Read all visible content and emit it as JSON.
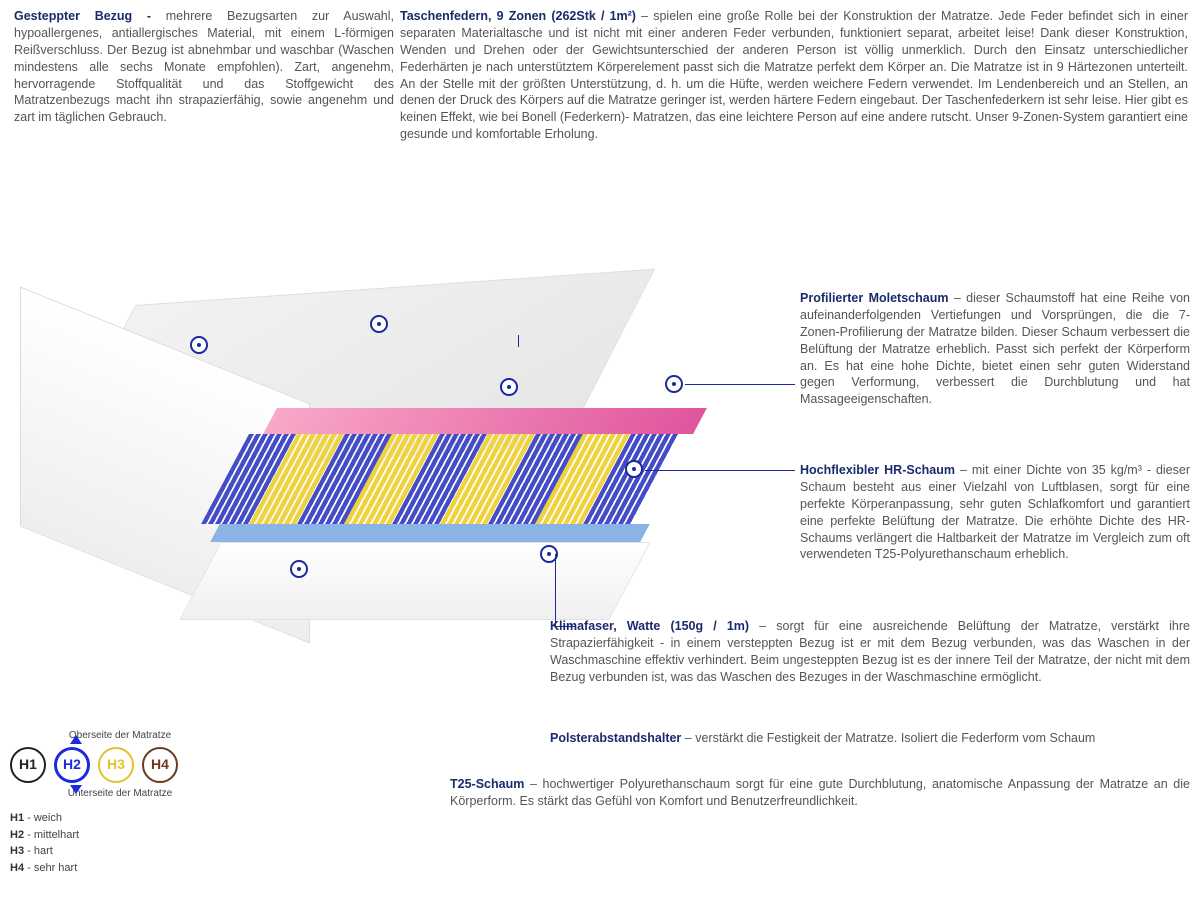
{
  "top": {
    "left": {
      "title": "Gesteppter Bezug -",
      "text": "mehrere Bezugsarten zur Auswahl, hypoallergenes, antiallergisches Material, mit einem L-förmigen Reißverschluss. Der Bezug ist abnehmbar und waschbar (Waschen mindestens alle sechs Monate empfohlen). Zart, angenehm, hervorragende Stoffqualität und das Stoffgewicht des Matratzenbezugs macht ihn strapazierfähig, sowie angenehm und zart im täglichen Gebrauch."
    },
    "right": {
      "title": "Taschenfedern, 9 Zonen (262Stk / 1m²)",
      "text": "– spielen eine große Rolle bei der Konstruktion der Matratze. Jede Feder befindet sich in einer separaten Materialtasche und ist nicht mit einer anderen Feder verbunden, funktioniert separat, arbeitet leise! Dank dieser Konstruktion, Wenden und Drehen oder der Gewichtsunterschied der anderen Person ist völlig unmerklich. Durch den Einsatz unterschiedlicher Federhärten je nach unterstütztem Körperelement passt sich die Matratze perfekt dem Körper an. Die Matratze ist in 9 Härtezonen unterteilt. An der Stelle mit der größten Unterstützung, d. h. um die Hüfte, werden weichere Federn verwendet. Im Lendenbereich und an Stellen, an denen der Druck des Körpers auf die Matratze geringer ist, werden härtere Federn eingebaut. Der Taschenfederkern ist sehr leise. Hier gibt es keinen Effekt, wie bei Bonell (Federkern)- Matratzen, das eine leichtere Person auf eine andere rutscht. Unser 9-Zonen-System garantiert eine gesunde und komfortable Erholung."
    }
  },
  "callouts": {
    "molet": {
      "title": "Profilierter Moletschaum",
      "text": "– dieser Schaumstoff hat eine Reihe von aufeinanderfolgenden Vertiefungen und Vorsprüngen, die die 7-Zonen-Profilierung der Matratze bilden. Dieser Schaum verbessert die Belüftung der Matratze erheblich. Passt sich perfekt der Körperform an. Es hat eine hohe Dichte, bietet einen sehr guten Widerstand gegen Verformung, verbessert die Durchblutung und hat Massageeigenschaften."
    },
    "hr": {
      "title": "Hochflexibler HR-Schaum",
      "text": "– mit einer Dichte von 35 kg/m³ - dieser Schaum besteht aus einer Vielzahl von Luftblasen, sorgt für eine perfekte Körperanpassung, sehr guten Schlafkomfort und garantiert eine perfekte Belüftung der Matratze. Die erhöhte Dichte des HR-Schaums verlängert die Haltbarkeit der Matratze im Vergleich zum oft verwendeten T25-Polyurethanschaum erheblich."
    },
    "klima": {
      "title": "Klimafaser, Watte (150g / 1m)",
      "text": "– sorgt für eine ausreichende Belüftung der Matratze, verstärkt ihre Strapazierfähigkeit - in einem versteppten Bezug ist er mit dem Bezug verbunden, was das Waschen in der Waschmaschine effektiv verhindert. Beim ungesteppten Bezug ist es der innere Teil der Matratze, der nicht mit dem Bezug verbunden ist, was das Waschen des Bezuges in der Waschmaschine ermöglicht."
    },
    "polster": {
      "title": "Polsterabstandshalter",
      "text": "– verstärkt die Festigkeit der Matratze. Isoliert die Federform vom Schaum"
    },
    "t25": {
      "title": "T25-Schaum",
      "text": "– hochwertiger Polyurethanschaum sorgt für eine gute Durchblutung, anatomische Anpassung der Matratze an die Körperform. Es stärkt das Gefühl von Komfort und Benutzerfreundlichkeit."
    }
  },
  "spring_bands": [
    {
      "color": "#444cc7"
    },
    {
      "color": "#efd23e"
    },
    {
      "color": "#444cc7"
    },
    {
      "color": "#efd23e"
    },
    {
      "color": "#444cc7"
    },
    {
      "color": "#efd23e"
    },
    {
      "color": "#444cc7"
    },
    {
      "color": "#efd23e"
    },
    {
      "color": "#444cc7"
    }
  ],
  "legend": {
    "top_caption": "Oberseite der Matratze",
    "bottom_caption": "Unterseite der Matratze",
    "circles": [
      {
        "label": "H1",
        "color": "#222222"
      },
      {
        "label": "H2",
        "color": "#1a2ae0"
      },
      {
        "label": "H3",
        "color": "#e2c22a"
      },
      {
        "label": "H4",
        "color": "#6b3a1e"
      }
    ],
    "selected_index": 1,
    "list": [
      {
        "code": "H1",
        "text": "- weich"
      },
      {
        "code": "H2",
        "text": "- mittelhart"
      },
      {
        "code": "H3",
        "text": "- hart"
      },
      {
        "code": "H4",
        "text": "- sehr hart"
      }
    ],
    "arrow_color": "#1a2ae0"
  }
}
